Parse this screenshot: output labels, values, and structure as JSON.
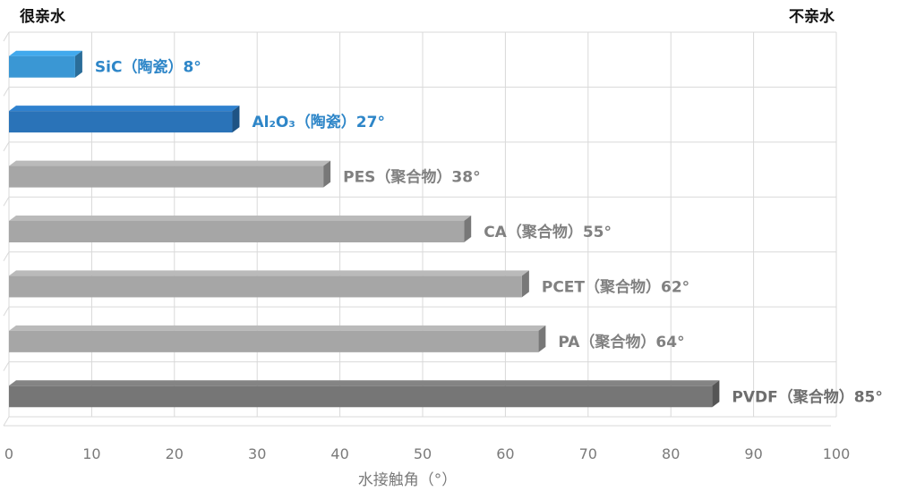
{
  "chart_data": {
    "type": "bar",
    "orientation": "horizontal",
    "corner_labels": {
      "left": "很亲水",
      "right": "不亲水"
    },
    "xlabel": "水接触角（°）",
    "xlim": [
      0,
      100
    ],
    "xticks": [
      0,
      10,
      20,
      30,
      40,
      50,
      60,
      70,
      80,
      90,
      100
    ],
    "grid": true,
    "bars": [
      {
        "label": "SiC（陶瓷）8°",
        "value": 8,
        "color": "#3a97d4"
      },
      {
        "label": "Al₂O₃（陶瓷）27°",
        "value": 27,
        "color": "#2a73b8"
      },
      {
        "label": "PES（聚合物）38°",
        "value": 38,
        "color": "#a6a6a6"
      },
      {
        "label": "CA（聚合物）55°",
        "value": 55,
        "color": "#a6a6a6"
      },
      {
        "label": "PCET（聚合物）62°",
        "value": 62,
        "color": "#a6a6a6"
      },
      {
        "label": "PA（聚合物）64°",
        "value": 64,
        "color": "#a6a6a6"
      },
      {
        "label": "PVDF（聚合物）85°",
        "value": 85,
        "color": "#767676"
      }
    ],
    "label_colors": {
      "ceramic": "#2e86c8",
      "polymer": "#808080",
      "dark": "#6e6e6e"
    }
  }
}
